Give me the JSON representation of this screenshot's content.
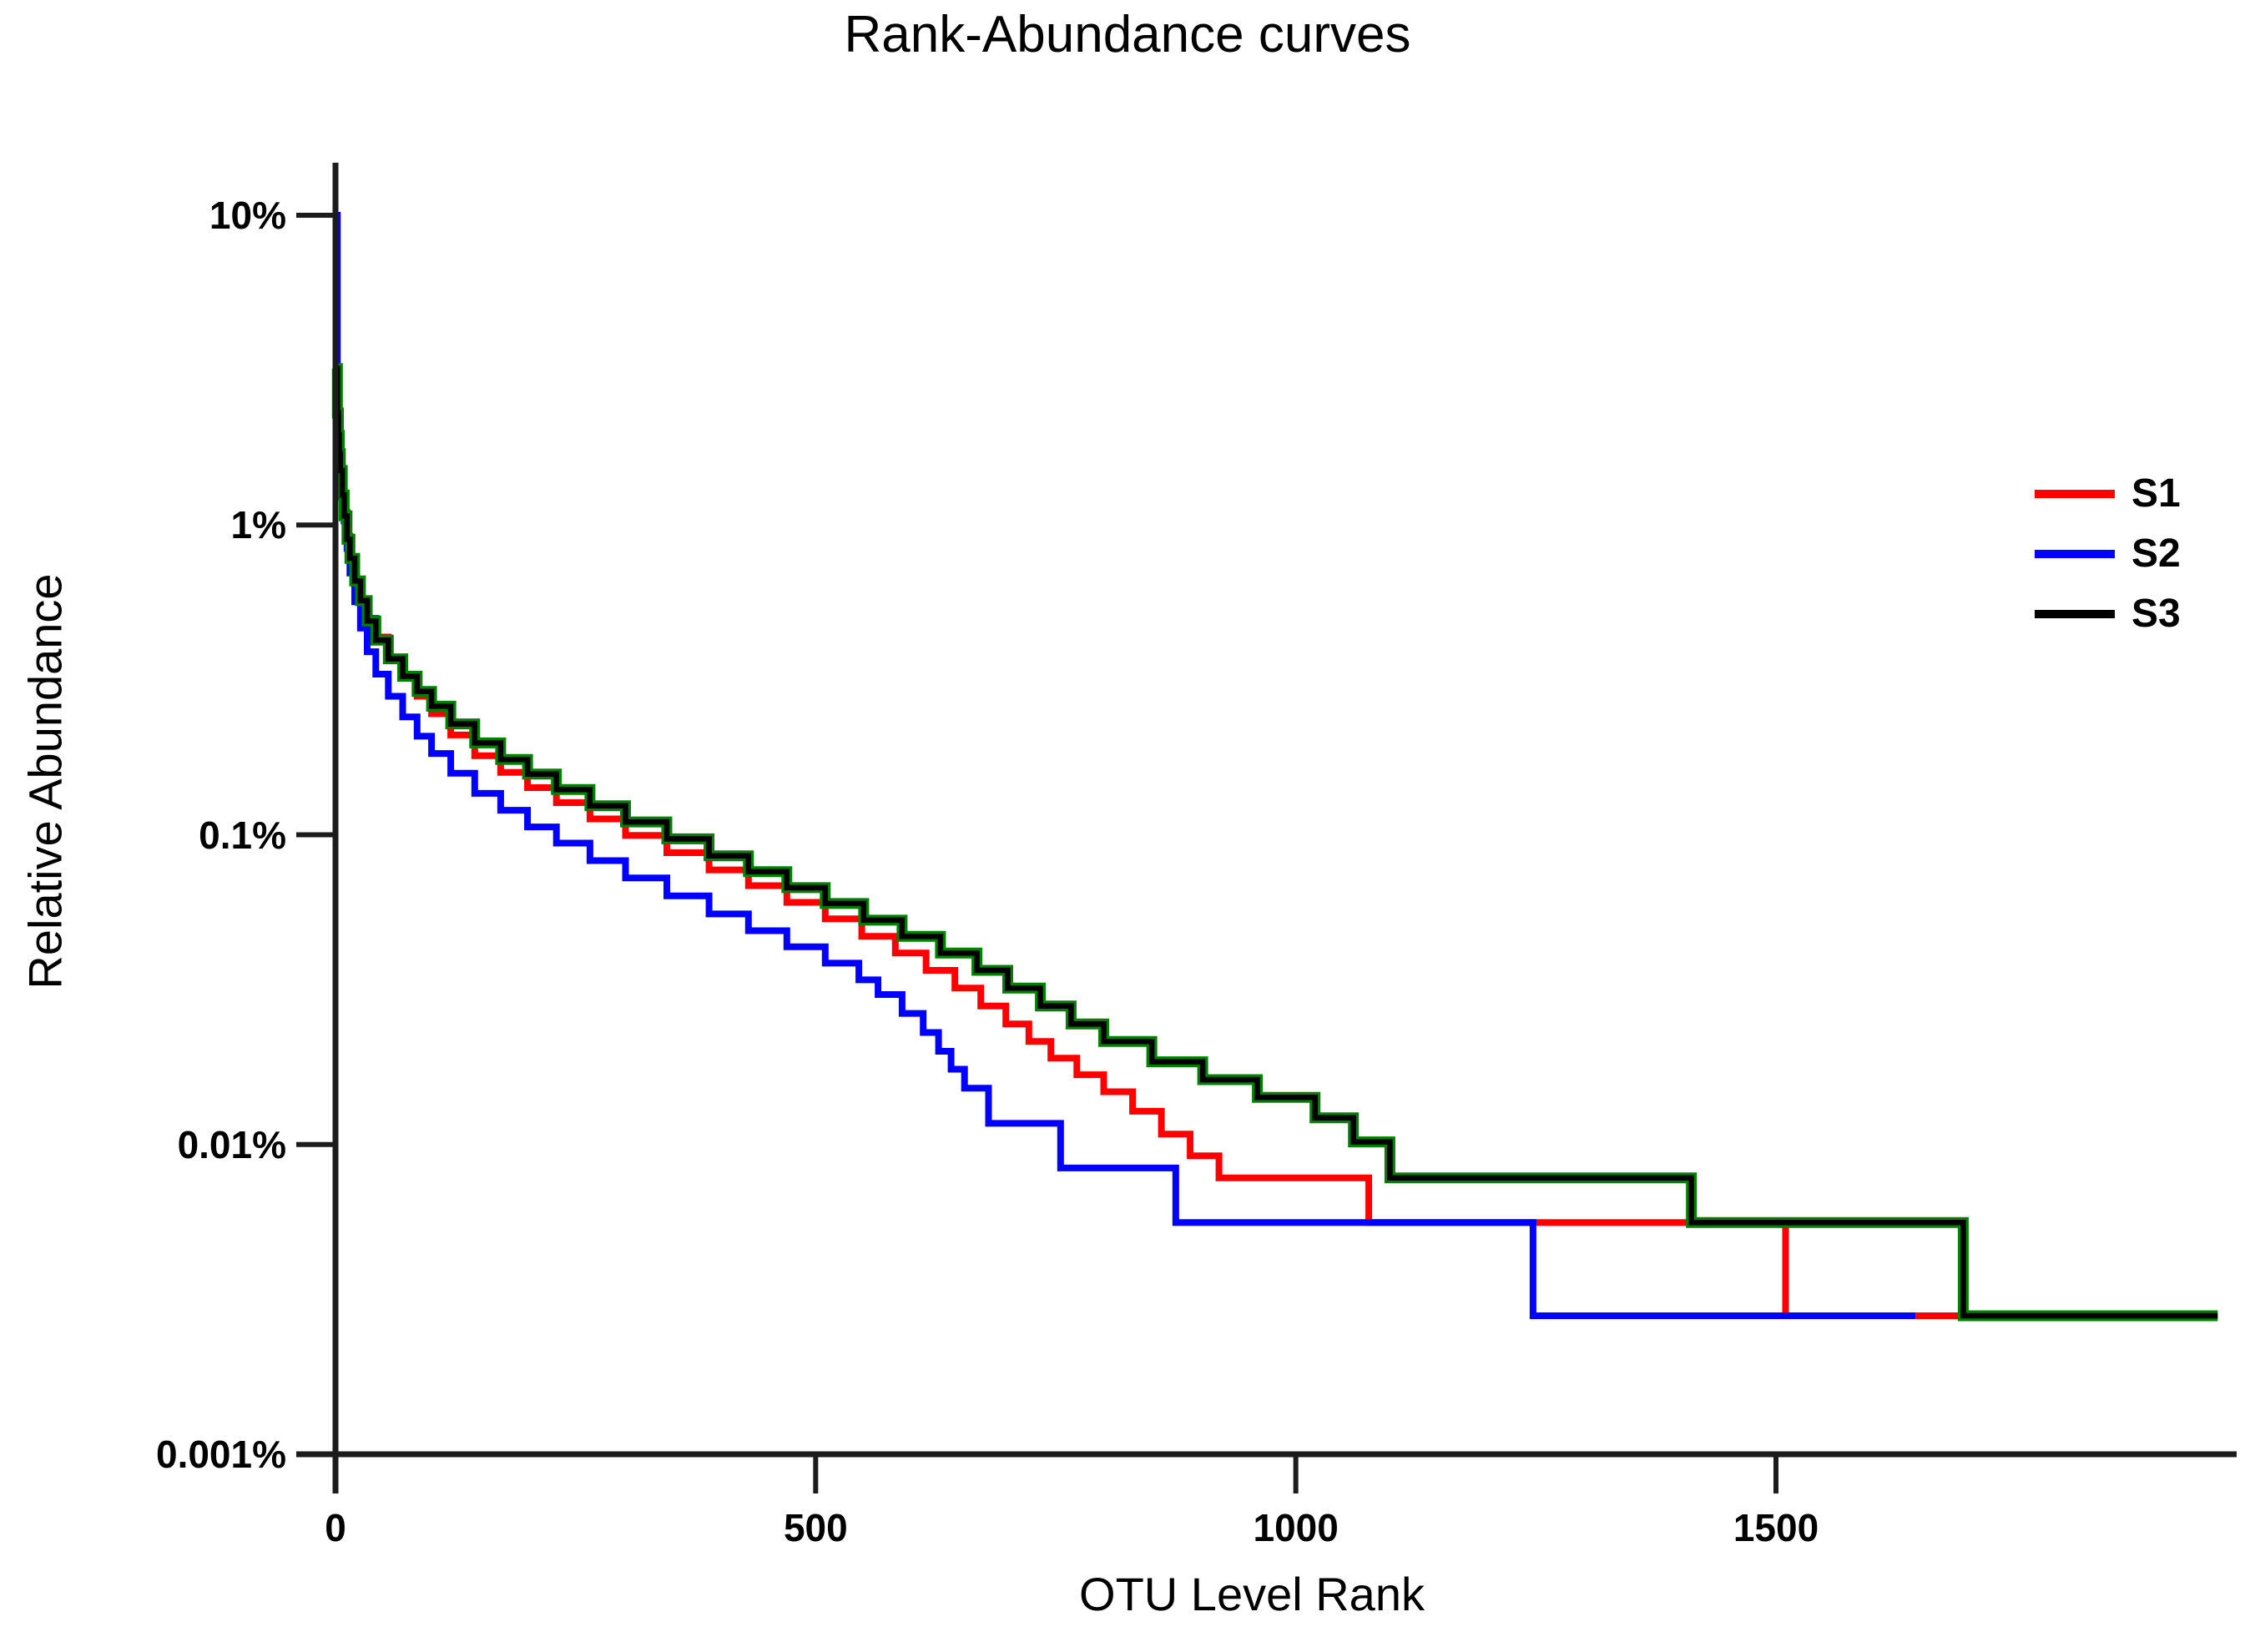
{
  "chart_data": {
    "type": "line",
    "title": "Rank-Abundance curves",
    "xlabel": "OTU Level Rank",
    "ylabel": "Relative Abundance",
    "y_scale": "log",
    "x_scale": "linear",
    "x_range": [
      0,
      1980
    ],
    "y_range_percent": [
      0.001,
      15
    ],
    "grid": false,
    "legend_position": "right",
    "line_style": "step-after",
    "x_ticks": [
      {
        "value": 0,
        "label": "0"
      },
      {
        "value": 500,
        "label": "500"
      },
      {
        "value": 1000,
        "label": "1000"
      },
      {
        "value": 1500,
        "label": "1500"
      }
    ],
    "y_ticks": [
      {
        "value": 10,
        "label": "10%"
      },
      {
        "value": 1,
        "label": "1%"
      },
      {
        "value": 0.1,
        "label": "0.1%"
      },
      {
        "value": 0.01,
        "label": "0.01%"
      },
      {
        "value": 0.001,
        "label": "0.001%"
      }
    ],
    "series": [
      {
        "name": "S1",
        "color": "#fe0000",
        "points_rank_percent": [
          [
            1,
            2.6
          ],
          [
            2,
            2.45
          ],
          [
            3,
            2.05
          ],
          [
            4,
            1.78
          ],
          [
            5,
            1.58
          ],
          [
            7,
            1.3
          ],
          [
            9,
            1.1
          ],
          [
            12,
            0.92
          ],
          [
            15,
            0.79
          ],
          [
            20,
            0.66
          ],
          [
            26,
            0.56
          ],
          [
            33,
            0.5
          ],
          [
            42,
            0.435
          ],
          [
            55,
            0.37
          ],
          [
            70,
            0.32
          ],
          [
            85,
            0.28
          ],
          [
            100,
            0.246
          ],
          [
            120,
            0.21
          ],
          [
            145,
            0.18
          ],
          [
            172,
            0.159
          ],
          [
            200,
            0.142
          ],
          [
            230,
            0.127
          ],
          [
            265,
            0.1125
          ],
          [
            302,
            0.0995
          ],
          [
            345,
            0.0875
          ],
          [
            389,
            0.077
          ],
          [
            430,
            0.0685
          ],
          [
            470,
            0.0605
          ],
          [
            510,
            0.0535
          ],
          [
            548,
            0.047
          ],
          [
            583,
            0.0415
          ],
          [
            615,
            0.0365
          ],
          [
            645,
            0.032
          ],
          [
            672,
            0.028
          ],
          [
            698,
            0.0245
          ],
          [
            722,
            0.0215
          ],
          [
            745,
            0.019
          ],
          [
            772,
            0.0168
          ],
          [
            800,
            0.0148
          ],
          [
            830,
            0.0128
          ],
          [
            860,
            0.0108
          ],
          [
            890,
            0.0092
          ],
          [
            920,
            0.0078
          ],
          [
            1076,
            0.0056
          ],
          [
            1510,
            0.0028
          ],
          [
            1815,
            0.0028
          ]
        ]
      },
      {
        "name": "S2",
        "color": "#0000fe",
        "points_rank_percent": [
          [
            1,
            10
          ],
          [
            2,
            2.9
          ],
          [
            3,
            2.2
          ],
          [
            4,
            1.8
          ],
          [
            5,
            1.55
          ],
          [
            7,
            1.25
          ],
          [
            9,
            1.03
          ],
          [
            12,
            0.84
          ],
          [
            15,
            0.7
          ],
          [
            20,
            0.565
          ],
          [
            26,
            0.465
          ],
          [
            33,
            0.39
          ],
          [
            42,
            0.33
          ],
          [
            55,
            0.28
          ],
          [
            70,
            0.24
          ],
          [
            85,
            0.208
          ],
          [
            100,
            0.183
          ],
          [
            120,
            0.158
          ],
          [
            145,
            0.136
          ],
          [
            172,
            0.12
          ],
          [
            200,
            0.106
          ],
          [
            230,
            0.094
          ],
          [
            265,
            0.0825
          ],
          [
            302,
            0.0725
          ],
          [
            345,
            0.0635
          ],
          [
            389,
            0.0555
          ],
          [
            430,
            0.049
          ],
          [
            470,
            0.0435
          ],
          [
            510,
            0.0385
          ],
          [
            545,
            0.034
          ],
          [
            565,
            0.0305
          ],
          [
            590,
            0.0265
          ],
          [
            612,
            0.023
          ],
          [
            628,
            0.02
          ],
          [
            641,
            0.0175
          ],
          [
            655,
            0.0152
          ],
          [
            680,
            0.0117
          ],
          [
            755,
            0.0084
          ],
          [
            875,
            0.0056
          ],
          [
            1247,
            0.0028
          ],
          [
            1645,
            0.0028
          ]
        ]
      },
      {
        "name": "S3",
        "color": "#000000",
        "halo_color": "#008000",
        "points_rank_percent": [
          [
            1,
            3.2
          ],
          [
            2,
            2.3
          ],
          [
            3,
            1.95
          ],
          [
            4,
            1.7
          ],
          [
            5,
            1.5
          ],
          [
            7,
            1.25
          ],
          [
            9,
            1.07
          ],
          [
            12,
            0.9
          ],
          [
            15,
            0.78
          ],
          [
            20,
            0.66
          ],
          [
            26,
            0.57
          ],
          [
            33,
            0.49
          ],
          [
            42,
            0.425
          ],
          [
            55,
            0.37
          ],
          [
            70,
            0.325
          ],
          [
            85,
            0.29
          ],
          [
            100,
            0.26
          ],
          [
            120,
            0.228
          ],
          [
            145,
            0.198
          ],
          [
            172,
            0.175
          ],
          [
            200,
            0.157
          ],
          [
            230,
            0.14
          ],
          [
            265,
            0.124
          ],
          [
            302,
            0.11
          ],
          [
            345,
            0.097
          ],
          [
            389,
            0.0855
          ],
          [
            430,
            0.076
          ],
          [
            470,
            0.0675
          ],
          [
            510,
            0.06
          ],
          [
            550,
            0.053
          ],
          [
            590,
            0.047
          ],
          [
            630,
            0.0415
          ],
          [
            668,
            0.0365
          ],
          [
            700,
            0.032
          ],
          [
            734,
            0.028
          ],
          [
            766,
            0.0245
          ],
          [
            800,
            0.0215
          ],
          [
            850,
            0.0185
          ],
          [
            903,
            0.0162
          ],
          [
            960,
            0.0142
          ],
          [
            1020,
            0.0122
          ],
          [
            1060,
            0.0102
          ],
          [
            1098,
            0.0078
          ],
          [
            1412,
            0.0056
          ],
          [
            1695,
            0.0028
          ],
          [
            1960,
            0.0028
          ]
        ]
      }
    ]
  },
  "axis_color": "#1c1c1c"
}
